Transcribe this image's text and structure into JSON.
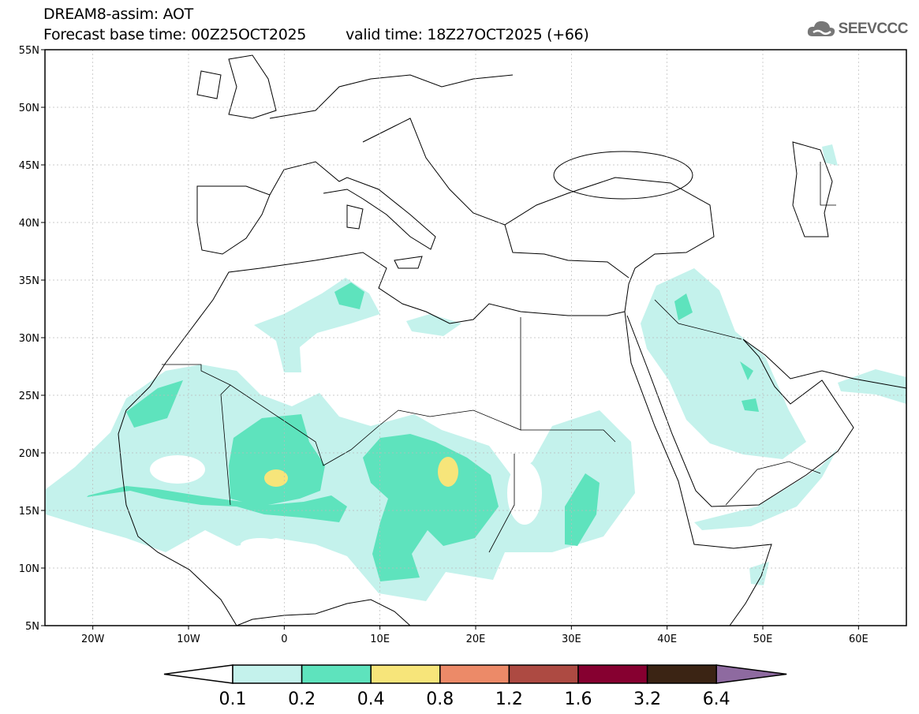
{
  "header": {
    "title": "DREAM8-assim: AOT",
    "base_time": "Forecast base time: 00Z25OCT2025",
    "valid_time": "valid time: 18Z27OCT2025 (+66)"
  },
  "logo": {
    "text": "SEEVCCC",
    "icon": "cloud-icon"
  },
  "map": {
    "lon_range": [
      -25,
      65
    ],
    "lat_range": [
      5,
      55
    ],
    "lat_ticks": [
      {
        "value": 55,
        "label": "55N"
      },
      {
        "value": 50,
        "label": "50N"
      },
      {
        "value": 45,
        "label": "45N"
      },
      {
        "value": 40,
        "label": "40N"
      },
      {
        "value": 35,
        "label": "35N"
      },
      {
        "value": 30,
        "label": "30N"
      },
      {
        "value": 25,
        "label": "25N"
      },
      {
        "value": 20,
        "label": "20N"
      },
      {
        "value": 15,
        "label": "15N"
      },
      {
        "value": 10,
        "label": "10N"
      },
      {
        "value": 5,
        "label": "5N"
      }
    ],
    "lon_ticks": [
      {
        "value": -20,
        "label": "20W"
      },
      {
        "value": -10,
        "label": "10W"
      },
      {
        "value": 0,
        "label": "0"
      },
      {
        "value": 10,
        "label": "10E"
      },
      {
        "value": 20,
        "label": "20E"
      },
      {
        "value": 30,
        "label": "30E"
      },
      {
        "value": 40,
        "label": "40E"
      },
      {
        "value": 50,
        "label": "50E"
      },
      {
        "value": 60,
        "label": "60E"
      }
    ]
  },
  "colorbar": {
    "labels": [
      "0.1",
      "0.2",
      "0.4",
      "0.8",
      "1.2",
      "1.6",
      "3.2",
      "6.4"
    ],
    "colors": [
      "#c4f2ec",
      "#5ee3bd",
      "#f7e57a",
      "#ec8a68",
      "#ad4a42",
      "#860030",
      "#3b2414"
    ],
    "under_color": "#ffffff",
    "over_color": "#8e6aa0"
  }
}
